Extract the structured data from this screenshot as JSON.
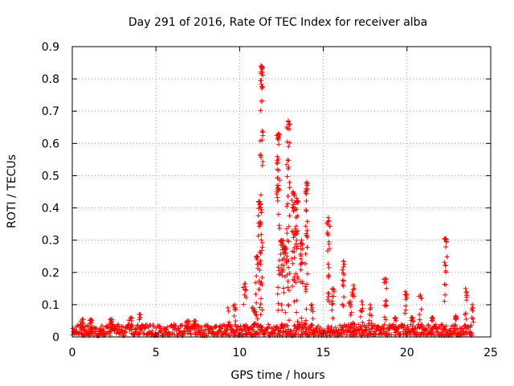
{
  "chart_data": {
    "type": "scatter",
    "title": "Day 291 of 2016, Rate Of TEC Index for receiver alba",
    "xlabel": "GPS time / hours",
    "ylabel": "ROTI / TECUs",
    "xlim": [
      0,
      25
    ],
    "ylim": [
      0,
      0.9
    ],
    "xticks": [
      0,
      5,
      10,
      15,
      20,
      25
    ],
    "xtick_labels": [
      "0",
      "5",
      "10",
      "15",
      "20",
      "25"
    ],
    "yticks": [
      0,
      0.1,
      0.2,
      0.3,
      0.4,
      0.5,
      0.6,
      0.7,
      0.8,
      0.9
    ],
    "ytick_labels": [
      "0",
      "0.1",
      "0.2",
      "0.3",
      "0.4",
      "0.5",
      "0.6",
      "0.7",
      "0.8",
      "0.9"
    ],
    "grid": true,
    "marker": "+",
    "color": "#ff0000",
    "baseline": {
      "description": "dense background noise band",
      "x_range": [
        0,
        23.9
      ],
      "y_range": [
        0.0,
        0.035
      ]
    },
    "spikes": [
      {
        "x": 0.6,
        "peak": 0.055
      },
      {
        "x": 1.1,
        "peak": 0.055
      },
      {
        "x": 2.3,
        "peak": 0.055
      },
      {
        "x": 3.5,
        "peak": 0.06
      },
      {
        "x": 4.0,
        "peak": 0.07
      },
      {
        "x": 6.9,
        "peak": 0.05
      },
      {
        "x": 7.3,
        "peak": 0.05
      },
      {
        "x": 9.3,
        "peak": 0.09
      },
      {
        "x": 9.7,
        "peak": 0.1
      },
      {
        "x": 10.3,
        "peak": 0.165
      },
      {
        "x": 10.8,
        "peak": 0.09
      },
      {
        "x": 11.3,
        "peak": 0.84
      },
      {
        "x": 11.2,
        "peak": 0.42
      },
      {
        "x": 11.0,
        "peak": 0.25
      },
      {
        "x": 12.3,
        "peak": 0.63
      },
      {
        "x": 12.5,
        "peak": 0.3
      },
      {
        "x": 12.7,
        "peak": 0.28
      },
      {
        "x": 12.9,
        "peak": 0.67
      },
      {
        "x": 13.2,
        "peak": 0.45
      },
      {
        "x": 13.4,
        "peak": 0.43
      },
      {
        "x": 13.7,
        "peak": 0.3
      },
      {
        "x": 14.0,
        "peak": 0.48
      },
      {
        "x": 14.3,
        "peak": 0.1
      },
      {
        "x": 15.3,
        "peak": 0.37
      },
      {
        "x": 15.6,
        "peak": 0.15
      },
      {
        "x": 16.2,
        "peak": 0.235
      },
      {
        "x": 16.6,
        "peak": 0.11
      },
      {
        "x": 16.8,
        "peak": 0.16
      },
      {
        "x": 17.3,
        "peak": 0.11
      },
      {
        "x": 17.8,
        "peak": 0.1
      },
      {
        "x": 18.7,
        "peak": 0.18
      },
      {
        "x": 19.3,
        "peak": 0.06
      },
      {
        "x": 19.9,
        "peak": 0.14
      },
      {
        "x": 20.3,
        "peak": 0.06
      },
      {
        "x": 20.8,
        "peak": 0.13
      },
      {
        "x": 21.5,
        "peak": 0.06
      },
      {
        "x": 22.3,
        "peak": 0.305
      },
      {
        "x": 22.9,
        "peak": 0.065
      },
      {
        "x": 23.5,
        "peak": 0.15
      },
      {
        "x": 23.9,
        "peak": 0.1
      }
    ]
  }
}
